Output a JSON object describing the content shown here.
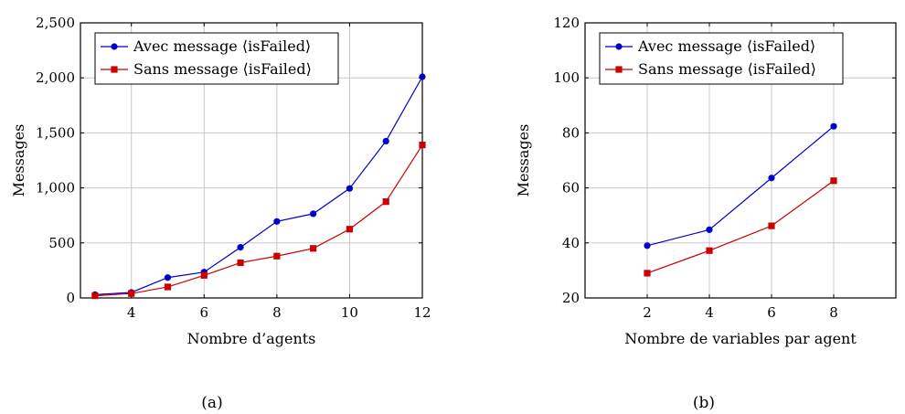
{
  "chart_data": [
    {
      "type": "line",
      "caption": "(a)",
      "xlabel": "Nombre d’agents",
      "ylabel": "Messages",
      "xlim": [
        2.6,
        12
      ],
      "ylim": [
        0,
        2500
      ],
      "xticks": [
        4,
        6,
        8,
        10,
        12
      ],
      "yticks": [
        0,
        500,
        1000,
        1500,
        2000,
        2500
      ],
      "ytick_labels": [
        "0",
        "500",
        "1,000",
        "1,500",
        "2,000",
        "2,500"
      ],
      "grid": true,
      "legend_position": "top-left",
      "series": [
        {
          "name": "Avec message ⟨isFailed⟩",
          "color": "#0000cc",
          "marker": "circle",
          "x": [
            3,
            4,
            5,
            6,
            7,
            8,
            9,
            10,
            11,
            12
          ],
          "values": [
            30,
            50,
            185,
            235,
            460,
            695,
            765,
            995,
            1425,
            2010
          ]
        },
        {
          "name": "Sans message ⟨isFailed⟩",
          "color": "#cc0000",
          "marker": "square",
          "x": [
            3,
            4,
            5,
            6,
            7,
            8,
            9,
            10,
            11,
            12
          ],
          "values": [
            20,
            40,
            100,
            205,
            320,
            380,
            450,
            625,
            875,
            1390
          ]
        }
      ]
    },
    {
      "type": "line",
      "caption": "(b)",
      "xlabel": "Nombre de variables par agent",
      "ylabel": "Messages",
      "xlim": [
        0,
        10
      ],
      "ylim": [
        20,
        120
      ],
      "xticks": [
        2,
        4,
        6,
        8
      ],
      "yticks": [
        20,
        40,
        60,
        80,
        100,
        120
      ],
      "ytick_labels": [
        "20",
        "40",
        "60",
        "80",
        "100",
        "120"
      ],
      "grid": true,
      "legend_position": "top-left",
      "series": [
        {
          "name": "Avec message ⟨isFailed⟩",
          "color": "#0000cc",
          "marker": "circle",
          "x": [
            2,
            4,
            6,
            8
          ],
          "values": [
            39,
            44.8,
            63.6,
            82.4
          ]
        },
        {
          "name": "Sans message ⟨isFailed⟩",
          "color": "#cc0000",
          "marker": "square",
          "x": [
            2,
            4,
            6,
            8
          ],
          "values": [
            29,
            37.2,
            46.2,
            62.6
          ]
        }
      ]
    }
  ]
}
